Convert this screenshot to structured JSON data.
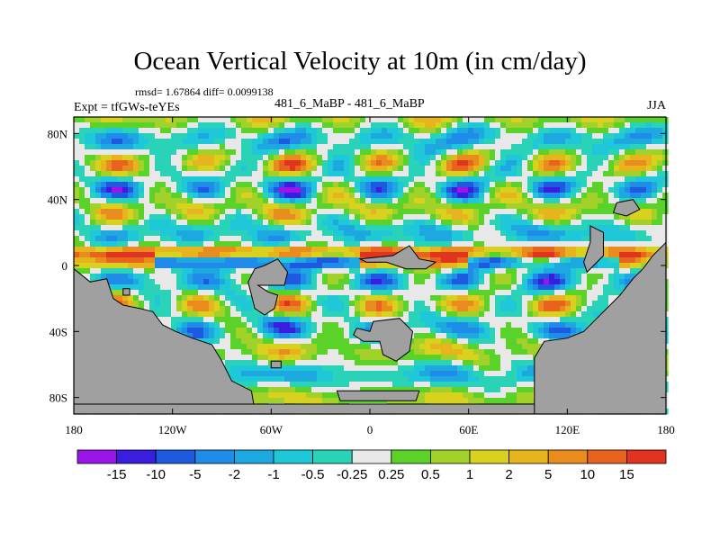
{
  "title": "Ocean Vertical Velocity at 10m (in cm/day)",
  "stats_line": "rmsd= 1.67864 diff= 0.0099138",
  "left_label": "Expt = tfGWs-teYEs",
  "center_label": "481_6_MaBP - 481_6_MaBP",
  "right_label": "JJA",
  "chart_data": {
    "type": "heatmap",
    "projection": "cylindrical-equidistant",
    "xlim": [
      -180,
      180
    ],
    "ylim": [
      -90,
      90
    ],
    "x_ticks": [
      {
        "value": -180,
        "label": "180"
      },
      {
        "value": -120,
        "label": "120W"
      },
      {
        "value": -60,
        "label": "60W"
      },
      {
        "value": 0,
        "label": "0"
      },
      {
        "value": 60,
        "label": "60E"
      },
      {
        "value": 120,
        "label": "120E"
      },
      {
        "value": 180,
        "label": "180"
      }
    ],
    "y_ticks": [
      {
        "value": 80,
        "label": "80N"
      },
      {
        "value": 40,
        "label": "40N"
      },
      {
        "value": 0,
        "label": "0"
      },
      {
        "value": -40,
        "label": "40S"
      },
      {
        "value": -80,
        "label": "80S"
      }
    ],
    "colorbar": {
      "levels": [
        "-15",
        "-10",
        "-5",
        "-2",
        "-1",
        "-0.5",
        "-0.25",
        "0.25",
        "0.5",
        "1",
        "2",
        "5",
        "10",
        "15"
      ],
      "colors": [
        "#9a16e8",
        "#3a1ee0",
        "#1e5ae0",
        "#1e8ce8",
        "#1ea8e0",
        "#1ec8d8",
        "#2ad2b8",
        "#e8e8e8",
        "#5ad22a",
        "#a2d22a",
        "#d8d21e",
        "#e8b41e",
        "#e88c1e",
        "#e8641e",
        "#e0341e"
      ]
    },
    "land_color": "#a0a0a0"
  }
}
